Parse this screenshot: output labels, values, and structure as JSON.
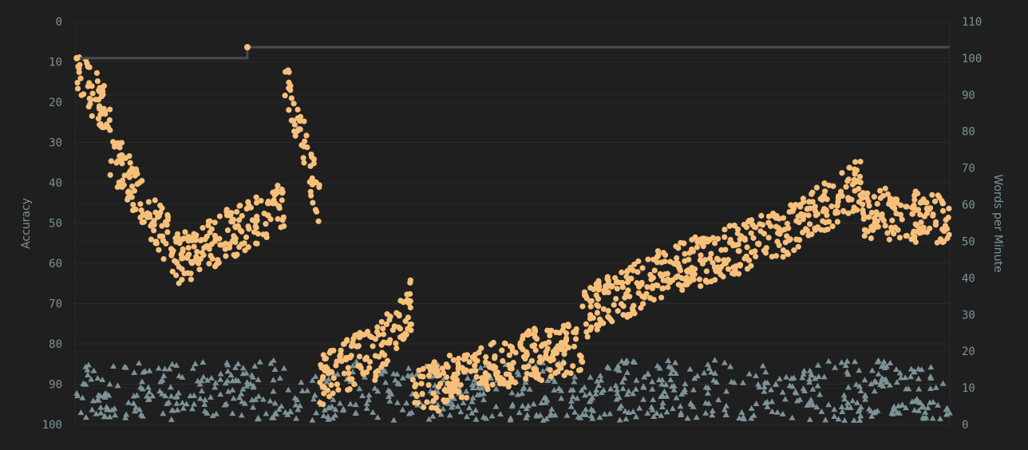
{
  "colors": {
    "background": "#1f1f20",
    "gridline": "#2a2a2c",
    "accent": "#f7c07a",
    "sub": "#7c9297",
    "best_line": "#4a4a4f",
    "tick": "#7c9297"
  },
  "chart_data": {
    "type": "scatter",
    "title": "",
    "x_range": [
      0,
      1000
    ],
    "left_axis": {
      "label": "Accuracy",
      "range": [
        0,
        100
      ],
      "inverted": true,
      "ticks": [
        0,
        10,
        20,
        30,
        40,
        50,
        60,
        70,
        80,
        90,
        100
      ]
    },
    "right_axis": {
      "label": "Words per Minute",
      "range": [
        0,
        110
      ],
      "ticks": [
        0,
        10,
        20,
        30,
        40,
        50,
        60,
        70,
        80,
        90,
        100,
        110
      ]
    },
    "grid": true,
    "wpm_segments": [
      {
        "x0": 0,
        "x1": 40,
        "x0v": 97,
        "x1v": 85
      },
      {
        "x0": 40,
        "x1": 120,
        "x0v": 75,
        "x1v": 45
      },
      {
        "x0": 120,
        "x1": 240,
        "x0v": 45,
        "x1v": 60
      },
      {
        "x0": 240,
        "x1": 280,
        "x0v": 95,
        "x1v": 60
      },
      {
        "x0": 280,
        "x1": 340,
        "x0v": 12,
        "x1v": 20
      },
      {
        "x0": 340,
        "x1": 385,
        "x0v": 18,
        "x1v": 33
      },
      {
        "x0": 385,
        "x1": 435,
        "x0v": 7,
        "x1v": 13
      },
      {
        "x0": 435,
        "x1": 530,
        "x0v": 12,
        "x1v": 20
      },
      {
        "x0": 530,
        "x1": 580,
        "x0v": 18,
        "x1v": 22
      },
      {
        "x0": 580,
        "x1": 680,
        "x0v": 30,
        "x1v": 42
      },
      {
        "x0": 680,
        "x1": 810,
        "x0v": 42,
        "x1v": 52
      },
      {
        "x0": 810,
        "x1": 900,
        "x0v": 52,
        "x1v": 66
      },
      {
        "x0": 900,
        "x1": 1000,
        "x0v": 58,
        "x1v": 56
      }
    ],
    "best_wpm_steps": [
      {
        "x": 0,
        "wpm": 100
      },
      {
        "x": 197,
        "wpm": 100
      },
      {
        "x": 197,
        "wpm": 103
      },
      {
        "x": 1000,
        "wpm": 103
      }
    ],
    "best_markers": [
      {
        "x": 2,
        "wpm": 100
      },
      {
        "x": 197,
        "wpm": 103
      }
    ],
    "accuracy_band": {
      "min": 84,
      "max": 99,
      "count": 760
    }
  }
}
